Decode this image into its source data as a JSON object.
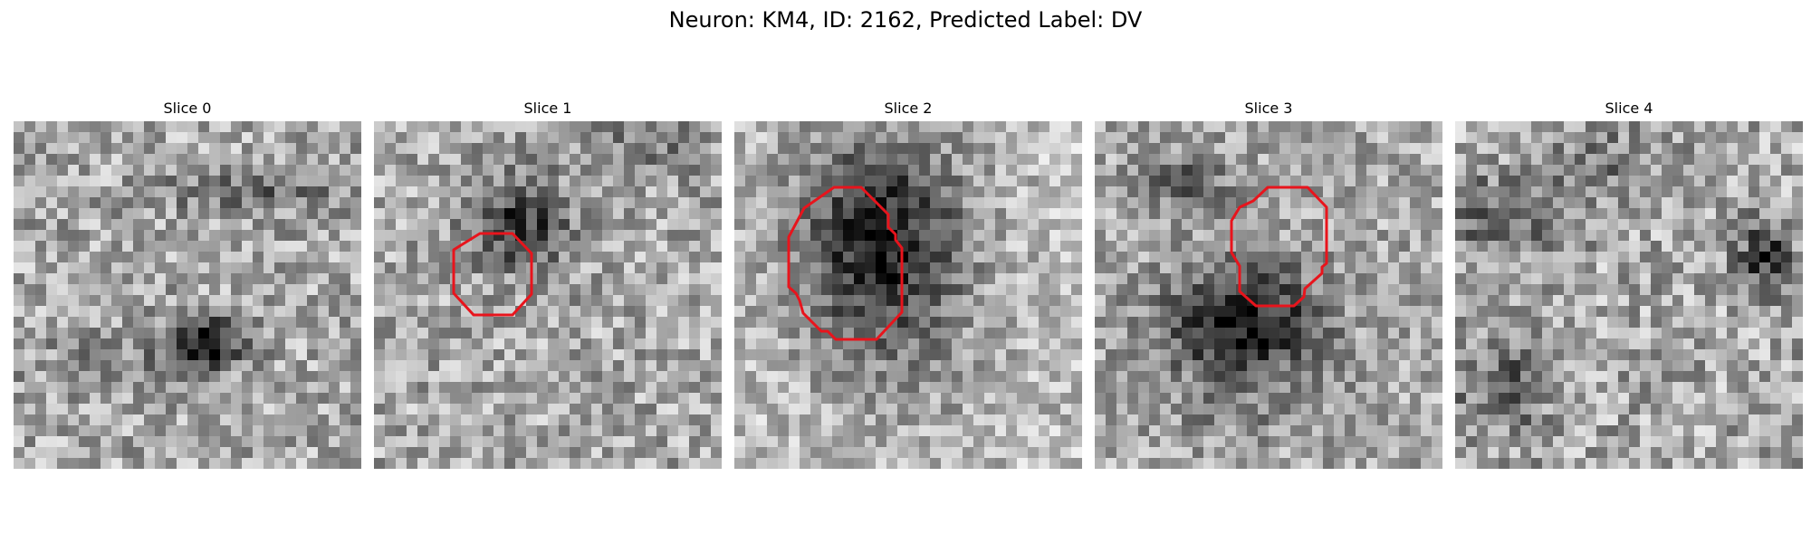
{
  "title": "Neuron: KM4, ID: 2162, Predicted Label: DV",
  "contour_color": "#e8141c",
  "colormap": "gray",
  "grid_size": 32,
  "panels": [
    {
      "label": "Slice 0",
      "has_contour": false
    },
    {
      "label": "Slice 1",
      "has_contour": true
    },
    {
      "label": "Slice 2",
      "has_contour": true
    },
    {
      "label": "Slice 3",
      "has_contour": true
    },
    {
      "label": "Slice 4",
      "has_contour": false
    }
  ]
}
